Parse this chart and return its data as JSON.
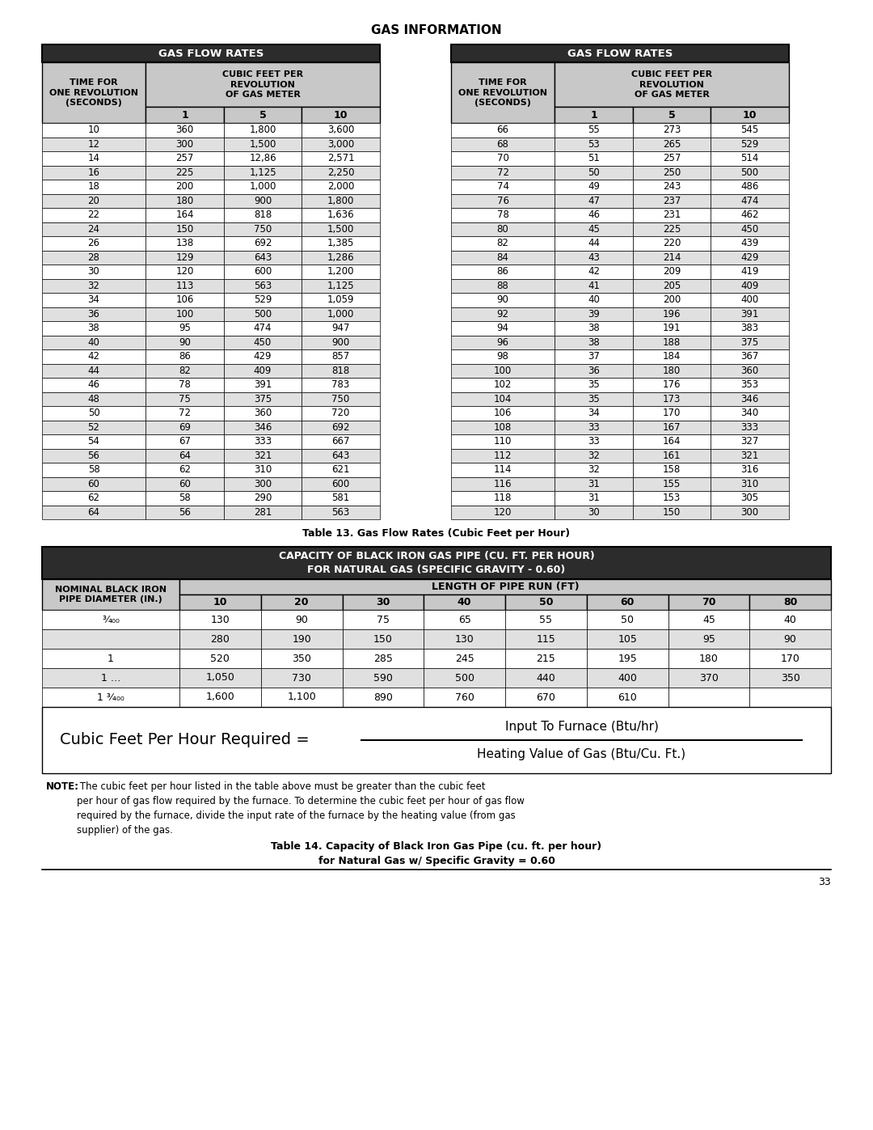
{
  "title": "GAS INFORMATION",
  "table1_title": "GAS FLOW RATES",
  "table2_title": "GAS FLOW RATES",
  "table1_data": [
    [
      "10",
      "360",
      "1,800",
      "3,600"
    ],
    [
      "12",
      "300",
      "1,500",
      "3,000"
    ],
    [
      "14",
      "257",
      "12,86",
      "2,571"
    ],
    [
      "16",
      "225",
      "1,125",
      "2,250"
    ],
    [
      "18",
      "200",
      "1,000",
      "2,000"
    ],
    [
      "20",
      "180",
      "900",
      "1,800"
    ],
    [
      "22",
      "164",
      "818",
      "1,636"
    ],
    [
      "24",
      "150",
      "750",
      "1,500"
    ],
    [
      "26",
      "138",
      "692",
      "1,385"
    ],
    [
      "28",
      "129",
      "643",
      "1,286"
    ],
    [
      "30",
      "120",
      "600",
      "1,200"
    ],
    [
      "32",
      "113",
      "563",
      "1,125"
    ],
    [
      "34",
      "106",
      "529",
      "1,059"
    ],
    [
      "36",
      "100",
      "500",
      "1,000"
    ],
    [
      "38",
      "95",
      "474",
      "947"
    ],
    [
      "40",
      "90",
      "450",
      "900"
    ],
    [
      "42",
      "86",
      "429",
      "857"
    ],
    [
      "44",
      "82",
      "409",
      "818"
    ],
    [
      "46",
      "78",
      "391",
      "783"
    ],
    [
      "48",
      "75",
      "375",
      "750"
    ],
    [
      "50",
      "72",
      "360",
      "720"
    ],
    [
      "52",
      "69",
      "346",
      "692"
    ],
    [
      "54",
      "67",
      "333",
      "667"
    ],
    [
      "56",
      "64",
      "321",
      "643"
    ],
    [
      "58",
      "62",
      "310",
      "621"
    ],
    [
      "60",
      "60",
      "300",
      "600"
    ],
    [
      "62",
      "58",
      "290",
      "581"
    ],
    [
      "64",
      "56",
      "281",
      "563"
    ]
  ],
  "table2_data": [
    [
      "66",
      "55",
      "273",
      "545"
    ],
    [
      "68",
      "53",
      "265",
      "529"
    ],
    [
      "70",
      "51",
      "257",
      "514"
    ],
    [
      "72",
      "50",
      "250",
      "500"
    ],
    [
      "74",
      "49",
      "243",
      "486"
    ],
    [
      "76",
      "47",
      "237",
      "474"
    ],
    [
      "78",
      "46",
      "231",
      "462"
    ],
    [
      "80",
      "45",
      "225",
      "450"
    ],
    [
      "82",
      "44",
      "220",
      "439"
    ],
    [
      "84",
      "43",
      "214",
      "429"
    ],
    [
      "86",
      "42",
      "209",
      "419"
    ],
    [
      "88",
      "41",
      "205",
      "409"
    ],
    [
      "90",
      "40",
      "200",
      "400"
    ],
    [
      "92",
      "39",
      "196",
      "391"
    ],
    [
      "94",
      "38",
      "191",
      "383"
    ],
    [
      "96",
      "38",
      "188",
      "375"
    ],
    [
      "98",
      "37",
      "184",
      "367"
    ],
    [
      "100",
      "36",
      "180",
      "360"
    ],
    [
      "102",
      "35",
      "176",
      "353"
    ],
    [
      "104",
      "35",
      "173",
      "346"
    ],
    [
      "106",
      "34",
      "170",
      "340"
    ],
    [
      "108",
      "33",
      "167",
      "333"
    ],
    [
      "110",
      "33",
      "164",
      "327"
    ],
    [
      "112",
      "32",
      "161",
      "321"
    ],
    [
      "114",
      "32",
      "158",
      "316"
    ],
    [
      "116",
      "31",
      "155",
      "310"
    ],
    [
      "118",
      "31",
      "153",
      "305"
    ],
    [
      "120",
      "30",
      "150",
      "300"
    ]
  ],
  "table3_title_line1": "CAPACITY OF BLACK IRON GAS PIPE (CU. FT. PER HOUR)",
  "table3_title_line2": "FOR NATURAL GAS (SPECIFIC GRAVITY - 0.60)",
  "table3_subheader": [
    "10",
    "20",
    "30",
    "40",
    "50",
    "60",
    "70",
    "80"
  ],
  "table3_data": [
    [
      "¾₀₀",
      "130",
      "90",
      "75",
      "65",
      "55",
      "50",
      "45",
      "40"
    ],
    [
      "",
      "280",
      "190",
      "150",
      "130",
      "115",
      "105",
      "95",
      "90"
    ],
    [
      "1",
      "520",
      "350",
      "285",
      "245",
      "215",
      "195",
      "180",
      "170"
    ],
    [
      "1 …",
      "1,050",
      "730",
      "590",
      "500",
      "440",
      "400",
      "370",
      "350"
    ],
    [
      "1 ¾₀₀",
      "1,600",
      "1,100",
      "890",
      "760",
      "670",
      "610",
      "",
      ""
    ]
  ],
  "formula_text1": "Cubic Feet Per Hour Required =",
  "formula_numerator": "Input To Furnace (Btu/hr)",
  "formula_denominator": "Heating Value of Gas (Btu/Cu. Ft.)",
  "table3_caption": "Table 13. Gas Flow Rates (Cubic Feet per Hour)",
  "note_bold": "NOTE:",
  "note_text": " The cubic feet per hour listed in the table above must be greater than the cubic feet\nper hour of gas flow required by the furnace. To determine the cubic feet per hour of gas flow\nrequired by the furnace, divide the input rate of the furnace by the heating value (from gas\nsupplier) of the gas.",
  "table4_caption_line1": "Table 14. Capacity of Black Iron Gas Pipe (cu. ft. per hour)",
  "table4_caption_line2": "for Natural Gas w/ Specific Gravity = 0.60",
  "page_number": "33",
  "bg_color": "#ffffff",
  "header_bg": "#c8c8c8",
  "dark_header_bg": "#2c2c2c",
  "row_alt1": "#ffffff",
  "row_alt2": "#e0e0e0",
  "border_color": "#000000",
  "text_color": "#1a1a1a"
}
